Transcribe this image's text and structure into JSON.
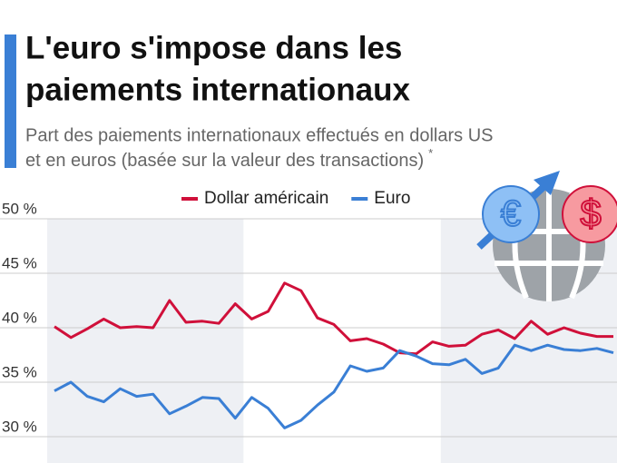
{
  "chart_data": {
    "type": "line",
    "title": [
      "L'euro s'impose dans les",
      "paiements internationaux"
    ],
    "subtitle": [
      "Part des paiements internationaux effectués en dollars US",
      "et en euros (basée sur la valeur des transactions)"
    ],
    "footnote_mark": "*",
    "icon": {
      "euro": "€",
      "dollar": "$"
    },
    "categories": [
      null,
      null,
      null,
      null,
      null,
      null,
      null,
      null,
      null,
      null,
      null,
      null,
      null,
      null,
      null,
      null,
      null,
      null,
      null,
      null,
      null,
      null,
      null,
      null,
      null,
      null,
      null,
      null,
      null,
      null,
      null,
      null,
      null,
      null,
      null
    ],
    "series": [
      {
        "name": "Dollar américain",
        "color": "#d0103a",
        "values": [
          40.1,
          39.1,
          39.9,
          40.8,
          40.0,
          40.1,
          40.0,
          42.5,
          40.5,
          40.6,
          40.4,
          42.2,
          40.8,
          41.5,
          44.1,
          43.4,
          40.9,
          40.3,
          38.8,
          39.0,
          38.5,
          37.7,
          37.6,
          38.7,
          38.3,
          38.4,
          39.4,
          39.8,
          39.0,
          40.6,
          39.4,
          40.0,
          39.5,
          39.2,
          39.2
        ]
      },
      {
        "name": "Euro",
        "color": "#3a7fd5",
        "values": [
          34.2,
          35.0,
          33.7,
          33.2,
          34.4,
          33.7,
          33.9,
          32.1,
          32.8,
          33.6,
          33.5,
          31.7,
          33.6,
          32.6,
          30.8,
          31.5,
          32.9,
          34.1,
          36.5,
          36.0,
          36.3,
          37.9,
          37.4,
          36.7,
          36.6,
          37.1,
          35.8,
          36.3,
          38.4,
          37.9,
          38.4,
          38.0,
          37.9,
          38.1,
          37.7
        ]
      }
    ],
    "ylim": [
      30,
      50
    ],
    "yticks": [
      {
        "value": 30,
        "label": "30 %"
      },
      {
        "value": 35,
        "label": "35 %"
      },
      {
        "value": 40,
        "label": "40 %"
      },
      {
        "value": 45,
        "label": "45 %"
      },
      {
        "value": 50,
        "label": "50 %"
      }
    ],
    "grid": true,
    "legend": "top"
  }
}
